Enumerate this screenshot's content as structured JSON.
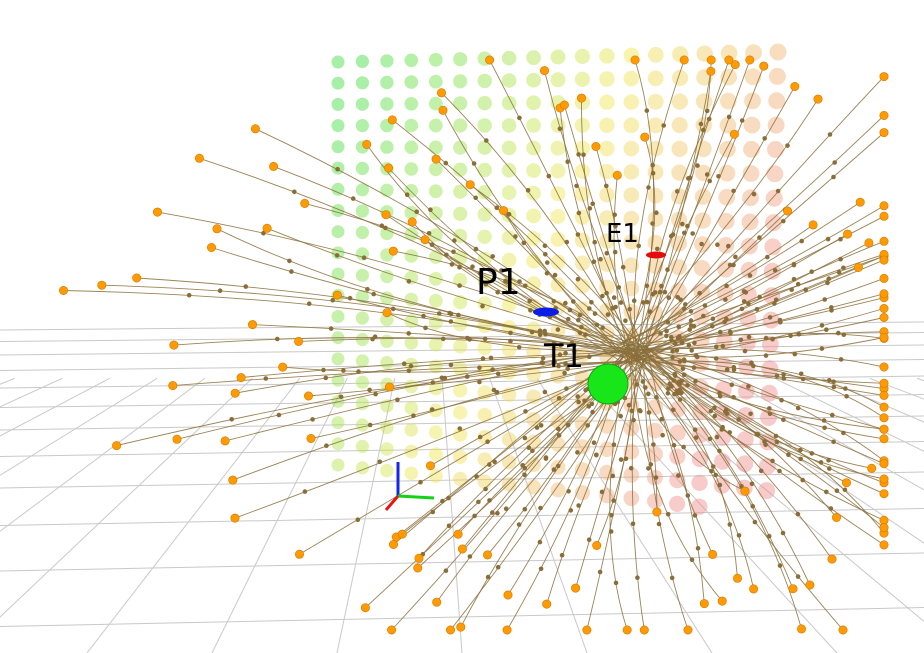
{
  "labels": {
    "pursuer": "P1",
    "evader": "E1",
    "target": "T1"
  },
  "colors": {
    "background": "#ffffff",
    "grid": "#c9c9c9",
    "path": "#8a6e3a",
    "path_node": "#8a6e3a",
    "path_start": "#ff9a00",
    "target_marker": "#19e619",
    "pursuer_marker": "#0a1ee6",
    "evader_marker": "#e60a0a",
    "axis_x": "#e61414",
    "axis_y": "#14d214",
    "axis_z": "#1428e6",
    "heat_low": "#3cdc3c",
    "heat_mid": "#f0e650",
    "heat_high": "#f08c8c"
  },
  "icons": {
    "axes": "xyz-axes-icon",
    "target": "sphere-icon",
    "pursuer": "disc-icon",
    "evader": "disc-icon"
  }
}
